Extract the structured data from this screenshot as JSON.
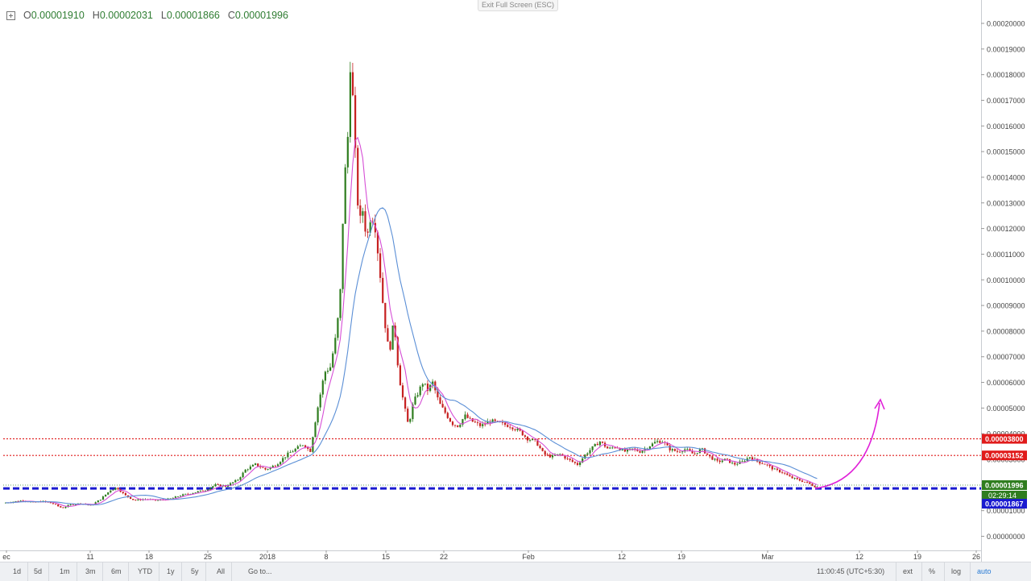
{
  "header": {
    "o_label": "O",
    "o_value": "0.00001910",
    "h_label": "H",
    "h_value": "0.00002031",
    "l_label": "L",
    "l_value": "0.00001866",
    "c_label": "C",
    "c_value": "0.00001996"
  },
  "exit_fullscreen_label": "Exit Full Screen (ESC)",
  "chart_data": {
    "type": "candlestick",
    "x_ticks": [
      "ec",
      "11",
      "18",
      "25",
      "2018",
      "8",
      "15",
      "22",
      "Feb",
      "12",
      "19",
      "Mar",
      "12",
      "19",
      "26"
    ],
    "y_ticks": [
      "0.00000000",
      "0.00001000",
      "0.00002000",
      "0.00003000",
      "0.00004000",
      "0.00005000",
      "0.00006000",
      "0.00007000",
      "0.00008000",
      "0.00009000",
      "0.00010000",
      "0.00011000",
      "0.00012000",
      "0.00013000",
      "0.00014000",
      "0.00015000",
      "0.00016000",
      "0.00017000",
      "0.00018000",
      "0.00019000",
      "0.00020000"
    ],
    "ylim": [
      0,
      0.0002
    ],
    "price_path": [
      [
        0,
        1.3e-05
      ],
      [
        12,
        1.35e-05
      ],
      [
        24,
        1.4e-05
      ],
      [
        36,
        1.32e-05
      ],
      [
        48,
        1.36e-05
      ],
      [
        60,
        1.28e-05
      ],
      [
        72,
        1.1e-05
      ],
      [
        84,
        1.25e-05
      ],
      [
        96,
        1.28e-05
      ],
      [
        108,
        1.2e-05
      ],
      [
        120,
        1.45e-05
      ],
      [
        132,
        1.8e-05
      ],
      [
        140,
        1.9e-05
      ],
      [
        150,
        1.6e-05
      ],
      [
        162,
        1.4e-05
      ],
      [
        175,
        1.45e-05
      ],
      [
        190,
        1.4e-05
      ],
      [
        205,
        1.45e-05
      ],
      [
        220,
        1.6e-05
      ],
      [
        235,
        1.7e-05
      ],
      [
        250,
        1.8e-05
      ],
      [
        262,
        2e-05
      ],
      [
        275,
        1.95e-05
      ],
      [
        290,
        2.2e-05
      ],
      [
        300,
        2.6e-05
      ],
      [
        312,
        2.8e-05
      ],
      [
        325,
        2.6e-05
      ],
      [
        338,
        2.8e-05
      ],
      [
        352,
        3.2e-05
      ],
      [
        362,
        3.4e-05
      ],
      [
        372,
        3.6e-05
      ],
      [
        380,
        3.3e-05
      ],
      [
        388,
        4.8e-05
      ],
      [
        398,
        6.4e-05
      ],
      [
        405,
        6.6e-05
      ],
      [
        412,
        7.8e-05
      ],
      [
        417,
        9.2e-05
      ],
      [
        422,
        0.000136
      ],
      [
        427,
        0.000157
      ],
      [
        430,
        0.000186
      ],
      [
        434,
        0.000165
      ],
      [
        438,
        0.000133
      ],
      [
        442,
        0.000123
      ],
      [
        446,
        0.000128
      ],
      [
        450,
        0.000115
      ],
      [
        455,
        0.000125
      ],
      [
        460,
        0.000123
      ],
      [
        466,
        0.000105
      ],
      [
        472,
        8.5e-05
      ],
      [
        478,
        7.1e-05
      ],
      [
        484,
        8.4e-05
      ],
      [
        490,
        6.3e-05
      ],
      [
        496,
        5.2e-05
      ],
      [
        502,
        4.3e-05
      ],
      [
        508,
        5.2e-05
      ],
      [
        514,
        5.6e-05
      ],
      [
        520,
        6e-05
      ],
      [
        526,
        5.7e-05
      ],
      [
        532,
        6e-05
      ],
      [
        540,
        5.2e-05
      ],
      [
        548,
        4.8e-05
      ],
      [
        556,
        4.4e-05
      ],
      [
        564,
        4.3e-05
      ],
      [
        572,
        4.7e-05
      ],
      [
        580,
        4.5e-05
      ],
      [
        592,
        4.3e-05
      ],
      [
        604,
        4.5e-05
      ],
      [
        616,
        4.4e-05
      ],
      [
        628,
        4.3e-05
      ],
      [
        640,
        4.1e-05
      ],
      [
        650,
        3.8e-05
      ],
      [
        660,
        3.7e-05
      ],
      [
        670,
        3.2e-05
      ],
      [
        680,
        3.1e-05
      ],
      [
        690,
        3.2e-05
      ],
      [
        700,
        3e-05
      ],
      [
        712,
        2.8e-05
      ],
      [
        722,
        3.2e-05
      ],
      [
        732,
        3.5e-05
      ],
      [
        740,
        3.7e-05
      ],
      [
        750,
        3.4e-05
      ],
      [
        760,
        3.5e-05
      ],
      [
        770,
        3.3e-05
      ],
      [
        780,
        3.4e-05
      ],
      [
        790,
        3.3e-05
      ],
      [
        800,
        3.5e-05
      ],
      [
        810,
        3.7e-05
      ],
      [
        818,
        3.7e-05
      ],
      [
        826,
        3.4e-05
      ],
      [
        836,
        3.3e-05
      ],
      [
        846,
        3.4e-05
      ],
      [
        856,
        3.2e-05
      ],
      [
        866,
        3.4e-05
      ],
      [
        876,
        3.1e-05
      ],
      [
        886,
        2.9e-05
      ],
      [
        896,
        3e-05
      ],
      [
        906,
        2.8e-05
      ],
      [
        916,
        2.9e-05
      ],
      [
        926,
        3.1e-05
      ],
      [
        936,
        2.9e-05
      ],
      [
        946,
        2.8e-05
      ],
      [
        956,
        2.6e-05
      ],
      [
        966,
        2.5e-05
      ],
      [
        976,
        2.3e-05
      ],
      [
        986,
        2.2e-05
      ],
      [
        996,
        2.1e-05
      ],
      [
        1006,
        1.95e-05
      ],
      [
        1014,
        1.87e-05
      ]
    ],
    "ma_fast_color": "#d64fd6",
    "ma_slow_color": "#5b8fd6",
    "up_color": "#2f7d1f",
    "down_color": "#c62020",
    "horizontal_lines": [
      {
        "price": 3.8e-05,
        "label": "0.00003800",
        "color": "#e01b1b",
        "style": "dotted"
      },
      {
        "price": 3.152e-05,
        "label": "0.00003152",
        "color": "#e01b1b",
        "style": "dotted"
      },
      {
        "price": 1.867e-05,
        "label": "0.00001867",
        "color": "#1a1ad0",
        "style": "dashed"
      }
    ],
    "last_price_label": "0.00001996",
    "countdown_label": "02:29:14",
    "annotation_arrow_color": "#e020d8"
  },
  "bottom_bar": {
    "timeframes": [
      "1d",
      "5d",
      "1m",
      "3m",
      "6m",
      "YTD",
      "1y",
      "5y",
      "All"
    ],
    "goto_label": "Go to...",
    "time_label": "11:00:45 (UTC+5:30)",
    "ext_label": "ext",
    "percent_label": "%",
    "log_label": "log",
    "auto_label": "auto"
  }
}
